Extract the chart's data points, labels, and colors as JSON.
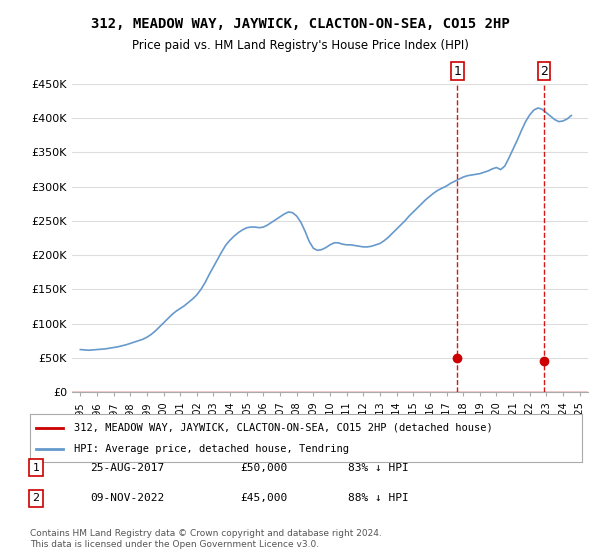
{
  "title": "312, MEADOW WAY, JAYWICK, CLACTON-ON-SEA, CO15 2HP",
  "subtitle": "Price paid vs. HM Land Registry's House Price Index (HPI)",
  "footer": "Contains HM Land Registry data © Crown copyright and database right 2024.\nThis data is licensed under the Open Government Licence v3.0.",
  "legend_label_red": "312, MEADOW WAY, JAYWICK, CLACTON-ON-SEA, CO15 2HP (detached house)",
  "legend_label_blue": "HPI: Average price, detached house, Tendring",
  "transactions": [
    {
      "label": "1",
      "date": "25-AUG-2017",
      "price": 50000,
      "pct": "83% ↓ HPI",
      "year": 2017.65
    },
    {
      "label": "2",
      "date": "09-NOV-2022",
      "price": 45000,
      "pct": "88% ↓ HPI",
      "year": 2022.86
    }
  ],
  "hpi_color": "#6699cc",
  "price_color": "#cc0000",
  "vline_color": "#cc0000",
  "dot_color": "#cc0000",
  "background_color": "#ffffff",
  "grid_color": "#dddddd",
  "ylim": [
    0,
    450000
  ],
  "yticks": [
    0,
    50000,
    100000,
    150000,
    200000,
    250000,
    300000,
    350000,
    400000,
    450000
  ],
  "xlim_start": 1994.5,
  "xlim_end": 2025.5,
  "hpi_data": {
    "years": [
      1995.0,
      1995.25,
      1995.5,
      1995.75,
      1996.0,
      1996.25,
      1996.5,
      1996.75,
      1997.0,
      1997.25,
      1997.5,
      1997.75,
      1998.0,
      1998.25,
      1998.5,
      1998.75,
      1999.0,
      1999.25,
      1999.5,
      1999.75,
      2000.0,
      2000.25,
      2000.5,
      2000.75,
      2001.0,
      2001.25,
      2001.5,
      2001.75,
      2002.0,
      2002.25,
      2002.5,
      2002.75,
      2003.0,
      2003.25,
      2003.5,
      2003.75,
      2004.0,
      2004.25,
      2004.5,
      2004.75,
      2005.0,
      2005.25,
      2005.5,
      2005.75,
      2006.0,
      2006.25,
      2006.5,
      2006.75,
      2007.0,
      2007.25,
      2007.5,
      2007.75,
      2008.0,
      2008.25,
      2008.5,
      2008.75,
      2009.0,
      2009.25,
      2009.5,
      2009.75,
      2010.0,
      2010.25,
      2010.5,
      2010.75,
      2011.0,
      2011.25,
      2011.5,
      2011.75,
      2012.0,
      2012.25,
      2012.5,
      2012.75,
      2013.0,
      2013.25,
      2013.5,
      2013.75,
      2014.0,
      2014.25,
      2014.5,
      2014.75,
      2015.0,
      2015.25,
      2015.5,
      2015.75,
      2016.0,
      2016.25,
      2016.5,
      2016.75,
      2017.0,
      2017.25,
      2017.5,
      2017.75,
      2018.0,
      2018.25,
      2018.5,
      2018.75,
      2019.0,
      2019.25,
      2019.5,
      2019.75,
      2020.0,
      2020.25,
      2020.5,
      2020.75,
      2021.0,
      2021.25,
      2021.5,
      2021.75,
      2022.0,
      2022.25,
      2022.5,
      2022.75,
      2023.0,
      2023.25,
      2023.5,
      2023.75,
      2024.0,
      2024.25,
      2024.5
    ],
    "values": [
      62000,
      61500,
      61000,
      61500,
      62000,
      62500,
      63000,
      64000,
      65000,
      66000,
      67500,
      69000,
      71000,
      73000,
      75000,
      77000,
      80000,
      84000,
      89000,
      95000,
      101000,
      107000,
      113000,
      118000,
      122000,
      126000,
      131000,
      136000,
      142000,
      150000,
      160000,
      172000,
      183000,
      194000,
      205000,
      215000,
      222000,
      228000,
      233000,
      237000,
      240000,
      241000,
      241000,
      240000,
      241000,
      244000,
      248000,
      252000,
      256000,
      260000,
      263000,
      262000,
      257000,
      248000,
      235000,
      220000,
      210000,
      207000,
      208000,
      211000,
      215000,
      218000,
      218000,
      216000,
      215000,
      215000,
      214000,
      213000,
      212000,
      212000,
      213000,
      215000,
      217000,
      221000,
      226000,
      232000,
      238000,
      244000,
      250000,
      257000,
      263000,
      269000,
      275000,
      281000,
      286000,
      291000,
      295000,
      298000,
      301000,
      305000,
      308000,
      311000,
      314000,
      316000,
      317000,
      318000,
      319000,
      321000,
      323000,
      326000,
      328000,
      325000,
      330000,
      342000,
      355000,
      368000,
      382000,
      395000,
      405000,
      412000,
      415000,
      413000,
      408000,
      403000,
      398000,
      395000,
      396000,
      399000,
      404000
    ]
  },
  "price_line_data": {
    "years": [
      1994.5,
      2024.5
    ],
    "values": [
      0,
      0
    ]
  }
}
